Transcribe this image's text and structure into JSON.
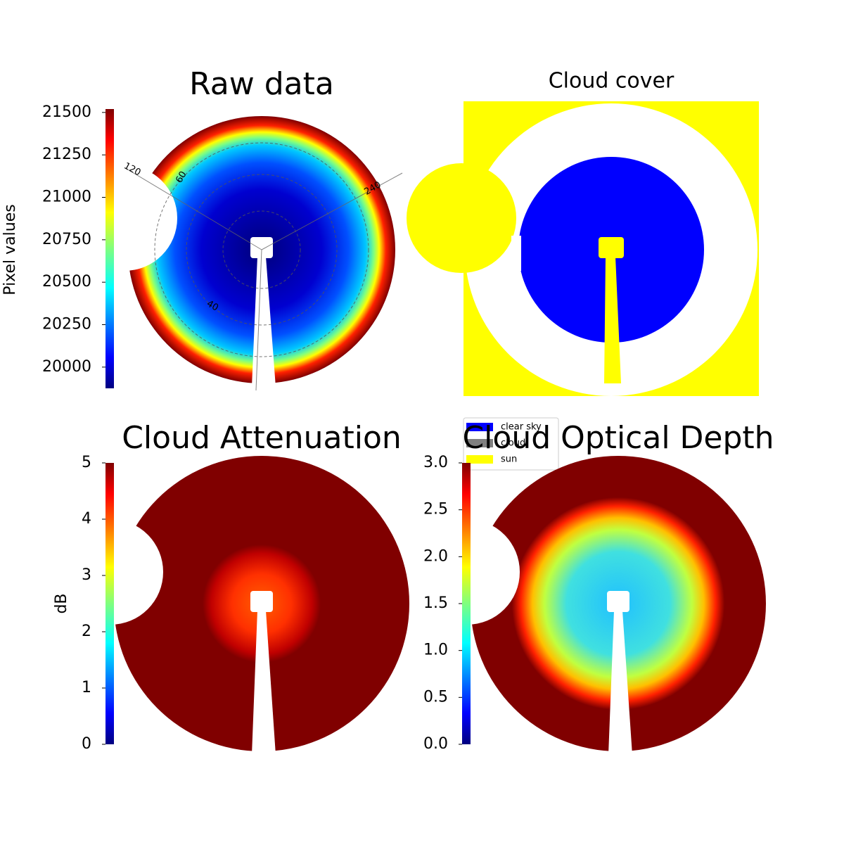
{
  "chart_data": [
    {
      "type": "heatmap",
      "title": "Raw data",
      "colorbar_label": "Pixel values",
      "colormap": "jet",
      "clim": [
        19875,
        21520
      ],
      "cticks": [
        20000,
        20250,
        20500,
        20750,
        21000,
        21250,
        21500
      ],
      "annotations": [
        "120",
        "60",
        "240",
        "40"
      ]
    },
    {
      "type": "category-map",
      "title": "Cloud cover",
      "legend": [
        {
          "name": "clear sky",
          "color": "#0000ff"
        },
        {
          "name": "cloud",
          "color": "#808080"
        },
        {
          "name": "sun",
          "color": "#ffff00"
        }
      ]
    },
    {
      "type": "heatmap",
      "title": "Cloud Attenuation",
      "colorbar_label": "dB",
      "colormap": "jet",
      "clim": [
        0,
        5
      ],
      "cticks": [
        0,
        1,
        2,
        3,
        4,
        5
      ]
    },
    {
      "type": "heatmap",
      "title": "Cloud Optical Depth",
      "colormap": "jet",
      "clim": [
        0,
        3
      ],
      "cticks": [
        {
          "value": 0,
          "label": "0.0"
        },
        0.5,
        {
          "value": 1,
          "label": "1.0"
        },
        1.5,
        {
          "value": 2,
          "label": "2.0"
        },
        2.5,
        {
          "value": 3,
          "label": "3.0"
        }
      ]
    }
  ]
}
